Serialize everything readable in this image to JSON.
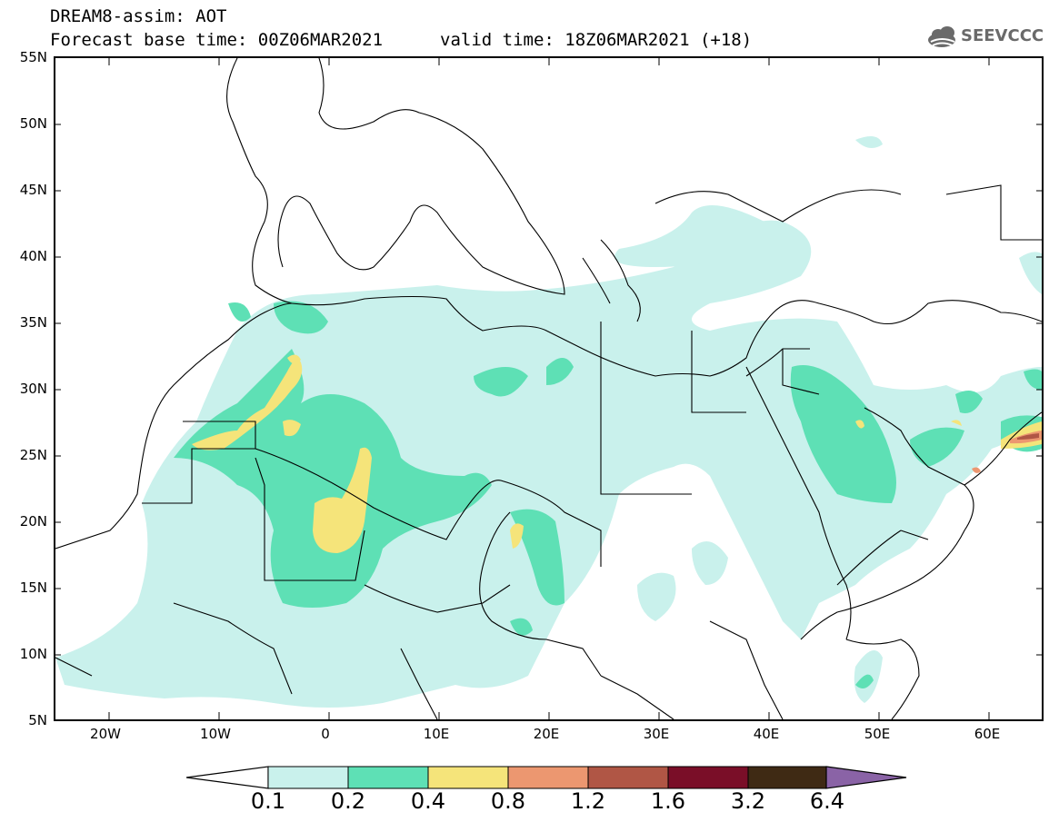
{
  "header": {
    "title_line1": "DREAM8-assim: AOT",
    "title_line2": "Forecast base time: 00Z06MAR2021",
    "valid_time": "valid time: 18Z06MAR2021 (+18)",
    "logo_text": "SEEVCCC"
  },
  "map": {
    "lat_labels": [
      "55N",
      "50N",
      "45N",
      "40N",
      "35N",
      "30N",
      "25N",
      "20N",
      "15N",
      "10N",
      "5N"
    ],
    "lon_labels": [
      "20W",
      "10W",
      "0",
      "10E",
      "20E",
      "30E",
      "40E",
      "50E",
      "60E"
    ],
    "lon_range": [
      -25,
      65
    ],
    "lat_range": [
      5,
      55
    ]
  },
  "colorbar": {
    "levels": [
      "0.1",
      "0.2",
      "0.4",
      "0.8",
      "1.2",
      "1.6",
      "3.2",
      "6.4"
    ],
    "colors": [
      "#c9f1ec",
      "#5ee0b5",
      "#f5e47a",
      "#ec9770",
      "#b05645",
      "#7a0e28",
      "#3f2a14",
      "#8a63a6"
    ],
    "under_color": "#ffffff"
  }
}
